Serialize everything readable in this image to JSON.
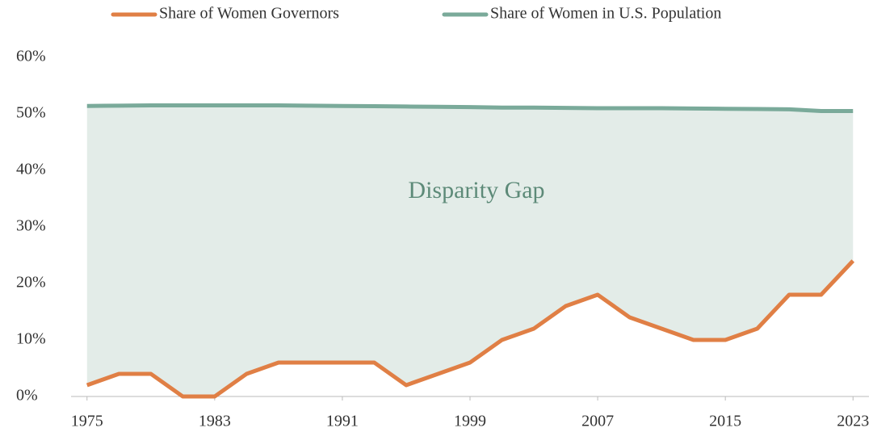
{
  "chart_data": {
    "type": "line",
    "annotation": "Disparity Gap",
    "x": [
      1975,
      1977,
      1979,
      1981,
      1983,
      1985,
      1987,
      1989,
      1991,
      1993,
      1995,
      1997,
      1999,
      2001,
      2003,
      2005,
      2007,
      2009,
      2011,
      2013,
      2015,
      2017,
      2019,
      2021,
      2023
    ],
    "series": [
      {
        "name": "Share of Women Governors",
        "color": "#e07f45",
        "values": [
          2,
          4,
          4,
          0,
          0,
          4,
          6,
          6,
          6,
          6,
          2,
          4,
          6,
          10,
          12,
          16,
          18,
          14,
          12,
          10,
          10,
          12,
          18,
          18,
          24
        ]
      },
      {
        "name": "Share of Women in U.S. Population",
        "color": "#7aaa9a",
        "values": [
          51.4,
          51.45,
          51.5,
          51.5,
          51.5,
          51.5,
          51.5,
          51.45,
          51.4,
          51.35,
          51.3,
          51.25,
          51.2,
          51.1,
          51.1,
          51.05,
          51.0,
          51.0,
          51.0,
          50.95,
          50.9,
          50.85,
          50.8,
          50.5,
          50.5
        ]
      }
    ],
    "gap_fill": "#e3ece8",
    "annotation_color": "#5d8a78",
    "xlim": [
      1974,
      2024
    ],
    "xticks": [
      1975,
      1983,
      1991,
      1999,
      2007,
      2015,
      2023
    ],
    "ylim": [
      0,
      60
    ],
    "yticks": [
      {
        "value": 0,
        "label": "0%"
      },
      {
        "value": 10,
        "label": "10%"
      },
      {
        "value": 20,
        "label": "20%"
      },
      {
        "value": 30,
        "label": "30%"
      },
      {
        "value": 40,
        "label": "40%"
      },
      {
        "value": 50,
        "label": "50%"
      },
      {
        "value": 60,
        "label": "60%"
      }
    ],
    "legend": "top"
  }
}
